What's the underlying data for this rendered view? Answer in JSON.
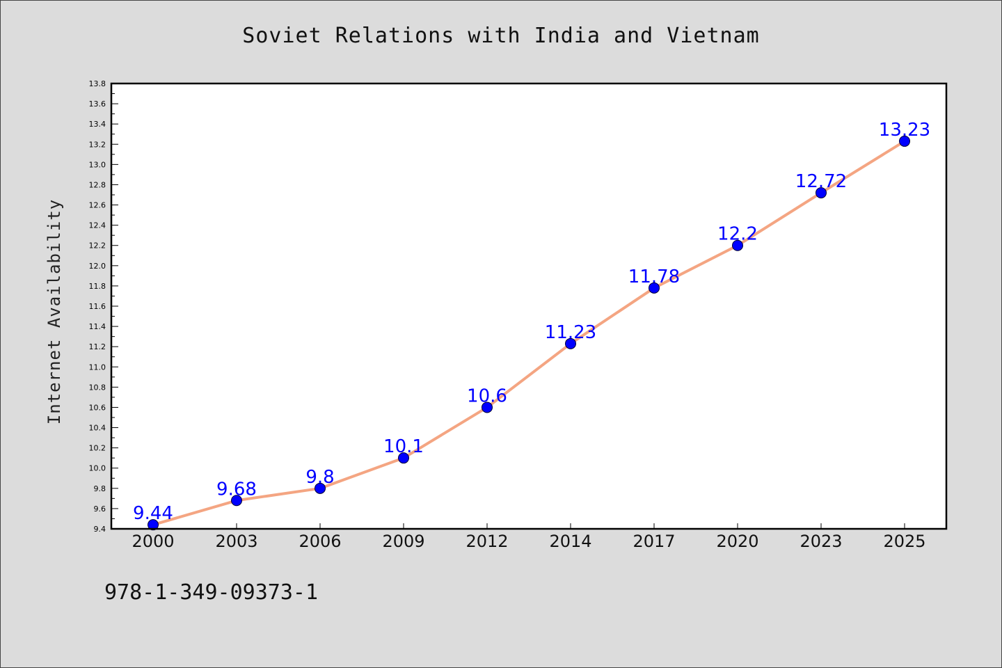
{
  "page": {
    "isbn": "978-1-349-09373-1"
  },
  "chart_data": {
    "type": "line",
    "title": "Soviet Relations with India and Vietnam",
    "xlabel": "",
    "ylabel": "Internet Availability",
    "categories": [
      "2000",
      "2003",
      "2006",
      "2009",
      "2012",
      "2014",
      "2017",
      "2020",
      "2023",
      "2025"
    ],
    "series": [
      {
        "values": [
          9.44,
          9.68,
          9.8,
          10.1,
          10.6,
          11.23,
          11.78,
          12.2,
          12.72,
          13.23
        ]
      }
    ],
    "data_labels": [
      "9.44",
      "9.68",
      "9.8",
      "10.1",
      "10.6",
      "11.23",
      "11.78",
      "12.2",
      "12.72",
      "13.23"
    ],
    "ylim": [
      9.4,
      13.8
    ],
    "y_ticks": [
      "9.4",
      "9.6",
      "9.8",
      "10.0",
      "10.2",
      "10.4",
      "10.6",
      "10.8",
      "11.0",
      "11.2",
      "11.4",
      "11.6",
      "11.8",
      "12.0",
      "12.2",
      "12.4",
      "12.6",
      "12.8",
      "13.0",
      "13.2",
      "13.4",
      "13.6",
      "13.8"
    ],
    "grid": false,
    "legend": "none",
    "colors": {
      "line": "#f4a582",
      "marker": "#0000ff",
      "label": "#0000ff"
    }
  }
}
